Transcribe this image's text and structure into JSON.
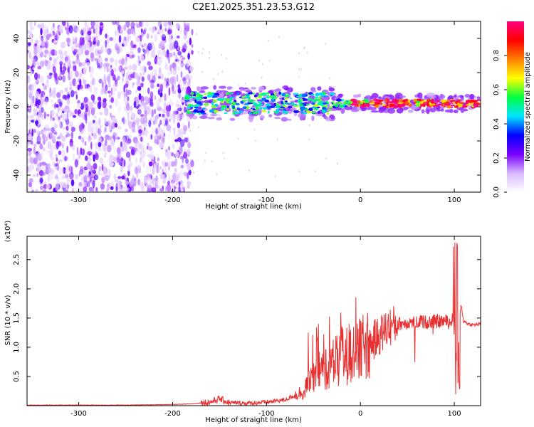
{
  "title": "C2E1.2025.351.23.53.G12",
  "chart_data": [
    {
      "type": "heatmap",
      "xlabel": "Height of straight line (km)",
      "ylabel": "Frequency (Hz)",
      "xlim": [
        -355,
        128
      ],
      "ylim": [
        -50,
        50
      ],
      "xticks": [
        -300,
        -200,
        -100,
        0,
        100
      ],
      "yticks": [
        -40,
        -20,
        0,
        20,
        40
      ],
      "colorbar": {
        "label": "Normalized spectral amplitude",
        "range": [
          0,
          1
        ],
        "ticks": [
          "0.0",
          "0.2",
          "0.4",
          "0.6",
          "0.8"
        ],
        "colors": [
          "#ffffff",
          "#d9b8ff",
          "#7a00ff",
          "#0000ff",
          "#00e5ff",
          "#00ff40",
          "#ffff00",
          "#ff8000",
          "#ff0000",
          "#ff0080"
        ]
      },
      "features": [
        {
          "name": "noise",
          "x_range": [
            -355,
            -185
          ],
          "y_range": [
            -50,
            50
          ],
          "amplitude": [
            0.0,
            0.2
          ]
        },
        {
          "name": "signal_band",
          "x_range": [
            -185,
            128
          ],
          "center_hz": 2,
          "halfwidth_hz": 6,
          "amplitude": [
            0.3,
            1.0
          ]
        }
      ]
    },
    {
      "type": "line",
      "xlabel": "Height of straight line (km)",
      "ylabel": "SNR (10 * v/v)",
      "y_multiplier": "(x10⁴)",
      "xlim": [
        -355,
        128
      ],
      "ylim": [
        0,
        2.9
      ],
      "xticks": [
        -300,
        -200,
        -100,
        0,
        100
      ],
      "yticks": [
        0.5,
        1.0,
        1.5,
        2.0,
        2.5
      ],
      "color": "#e83030",
      "series": [
        {
          "x": [
            -355,
            -300,
            -250,
            -200,
            -180,
            -160,
            -150,
            -140,
            -120,
            -100,
            -80,
            -60,
            -50,
            -40,
            -30,
            -20,
            -10,
            0,
            10,
            20,
            30,
            40,
            50,
            60,
            70,
            80,
            90,
            95,
            100,
            103,
            106,
            110,
            115,
            120,
            128
          ],
          "values": [
            0.01,
            0.01,
            0.01,
            0.02,
            0.03,
            0.06,
            0.12,
            0.05,
            0.04,
            0.06,
            0.1,
            0.25,
            0.5,
            0.65,
            0.7,
            0.8,
            0.9,
            0.95,
            1.05,
            1.2,
            1.35,
            1.4,
            1.42,
            1.45,
            1.43,
            1.44,
            1.45,
            1.42,
            1.5,
            0.5,
            1.7,
            1.45,
            1.4,
            1.38,
            1.4
          ]
        }
      ]
    }
  ]
}
